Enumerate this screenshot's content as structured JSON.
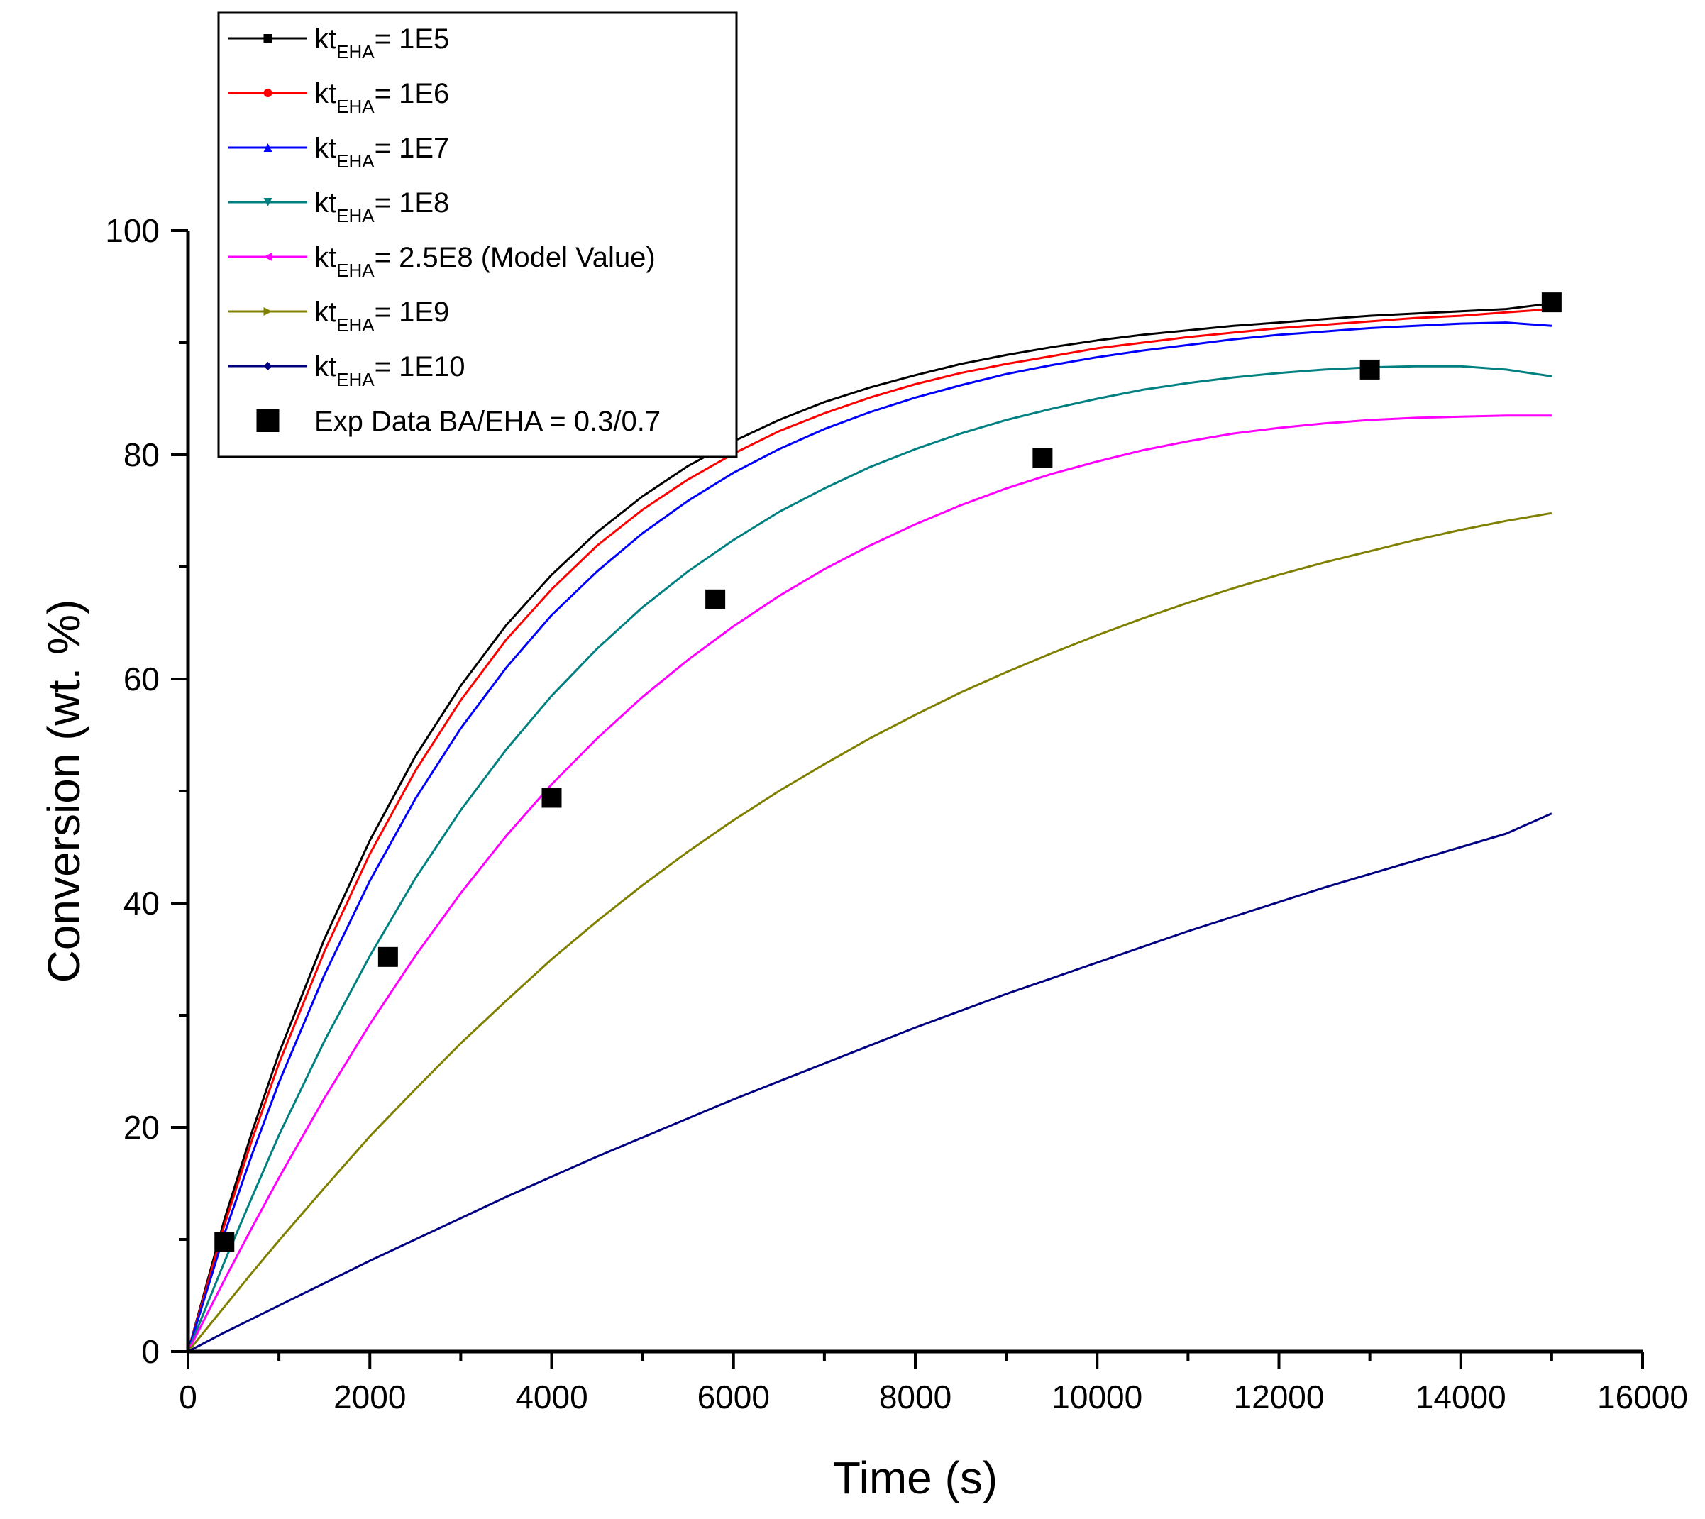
{
  "chart_data": {
    "type": "line",
    "title": "",
    "xlabel": "Time (s)",
    "ylabel": "Conversion (wt. %)",
    "xlim": [
      0,
      16000
    ],
    "ylim": [
      0,
      100
    ],
    "x_major_ticks": [
      0,
      2000,
      4000,
      6000,
      8000,
      10000,
      12000,
      14000,
      16000
    ],
    "x_tick_labels": [
      "0",
      "2000",
      "4000",
      "6000",
      "8000",
      "10000",
      "12000",
      "14000",
      "16000"
    ],
    "y_major_ticks": [
      0,
      20,
      40,
      60,
      80,
      100
    ],
    "y_tick_labels": [
      "0",
      "20",
      "40",
      "60",
      "80",
      "100"
    ],
    "grid": false,
    "legend_position": "top-left",
    "x": [
      0,
      400,
      700,
      1000,
      1500,
      2000,
      2500,
      3000,
      3500,
      4000,
      4500,
      5000,
      5500,
      6000,
      6500,
      7000,
      7500,
      8000,
      8500,
      9000,
      9500,
      10000,
      10500,
      11000,
      11500,
      12000,
      12500,
      13000,
      13500,
      14000,
      14500,
      15000
    ],
    "series": [
      {
        "name_base": "kt",
        "name_sub": "EHA",
        "name_rest": "= 1E5",
        "color": "#000000",
        "marker": "square",
        "values": [
          0,
          11.8,
          19.5,
          26.6,
          36.8,
          45.6,
          53.1,
          59.4,
          64.8,
          69.3,
          73.1,
          76.3,
          79.0,
          81.2,
          83.1,
          84.7,
          86.0,
          87.1,
          88.1,
          88.9,
          89.6,
          90.2,
          90.7,
          91.1,
          91.5,
          91.8,
          92.1,
          92.4,
          92.6,
          92.8,
          93.0,
          93.5
        ]
      },
      {
        "name_base": "kt",
        "name_sub": "EHA",
        "name_rest": "= 1E6",
        "color": "#ff0000",
        "marker": "circle",
        "values": [
          0,
          11.3,
          18.8,
          25.7,
          35.7,
          44.4,
          51.8,
          58.1,
          63.5,
          68.0,
          71.9,
          75.1,
          77.8,
          80.1,
          82.1,
          83.7,
          85.1,
          86.3,
          87.3,
          88.1,
          88.8,
          89.5,
          90.0,
          90.5,
          90.9,
          91.3,
          91.6,
          91.9,
          92.2,
          92.4,
          92.7,
          93.0
        ]
      },
      {
        "name_base": "kt",
        "name_sub": "EHA",
        "name_rest": "= 1E7",
        "color": "#0000ff",
        "marker": "triangle-up",
        "values": [
          0,
          10.5,
          17.5,
          24.0,
          33.6,
          42.0,
          49.3,
          55.6,
          61.0,
          65.7,
          69.6,
          73.0,
          75.9,
          78.4,
          80.5,
          82.3,
          83.8,
          85.1,
          86.2,
          87.2,
          88.0,
          88.7,
          89.3,
          89.8,
          90.3,
          90.7,
          91.0,
          91.3,
          91.5,
          91.7,
          91.8,
          91.5
        ]
      },
      {
        "name_base": "kt",
        "name_sub": "EHA",
        "name_rest": "= 1E8",
        "color": "#008080",
        "marker": "triangle-down",
        "values": [
          0,
          8.0,
          13.7,
          19.3,
          27.7,
          35.3,
          42.2,
          48.3,
          53.7,
          58.5,
          62.7,
          66.4,
          69.6,
          72.4,
          74.9,
          77.0,
          78.9,
          80.5,
          81.9,
          83.1,
          84.1,
          85.0,
          85.8,
          86.4,
          86.9,
          87.3,
          87.6,
          87.8,
          87.9,
          87.9,
          87.6,
          87.0
        ]
      },
      {
        "name_base": "kt",
        "name_sub": "EHA",
        "name_rest": "= 2.5E8 (Model Value)",
        "color": "#ff00ff",
        "marker": "triangle-left",
        "values": [
          0,
          6.4,
          11.0,
          15.5,
          22.6,
          29.2,
          35.3,
          40.9,
          46.0,
          50.6,
          54.7,
          58.4,
          61.7,
          64.7,
          67.4,
          69.8,
          71.9,
          73.8,
          75.5,
          77.0,
          78.3,
          79.4,
          80.4,
          81.2,
          81.9,
          82.4,
          82.8,
          83.1,
          83.3,
          83.4,
          83.5,
          83.5
        ]
      },
      {
        "name_base": "kt",
        "name_sub": "EHA",
        "name_rest": "= 1E9",
        "color": "#808000",
        "marker": "triangle-right",
        "values": [
          0,
          4.0,
          7.0,
          9.9,
          14.6,
          19.2,
          23.4,
          27.5,
          31.3,
          35.0,
          38.4,
          41.6,
          44.6,
          47.4,
          50.0,
          52.4,
          54.7,
          56.8,
          58.8,
          60.6,
          62.3,
          63.9,
          65.4,
          66.8,
          68.1,
          69.3,
          70.4,
          71.4,
          72.4,
          73.3,
          74.1,
          74.8
        ]
      },
      {
        "name_base": "kt",
        "name_sub": "EHA",
        "name_rest": "= 1E10",
        "color": "#000080",
        "marker": "diamond",
        "values": [
          0,
          1.7,
          2.9,
          4.1,
          6.1,
          8.1,
          10.0,
          11.9,
          13.8,
          15.6,
          17.4,
          19.1,
          20.8,
          22.5,
          24.1,
          25.7,
          27.3,
          28.9,
          30.4,
          31.9,
          33.3,
          34.7,
          36.1,
          37.5,
          38.8,
          40.1,
          41.4,
          42.6,
          43.8,
          45.0,
          46.2,
          48.0
        ]
      }
    ],
    "scatter": {
      "name": "Exp Data BA/EHA = 0.3/0.7",
      "color": "#000000",
      "marker": "square",
      "x": [
        400,
        2200,
        4000,
        5800,
        9400,
        13000,
        15000
      ],
      "y": [
        9.8,
        35.2,
        49.4,
        67.1,
        79.7,
        87.6,
        93.6
      ]
    }
  }
}
